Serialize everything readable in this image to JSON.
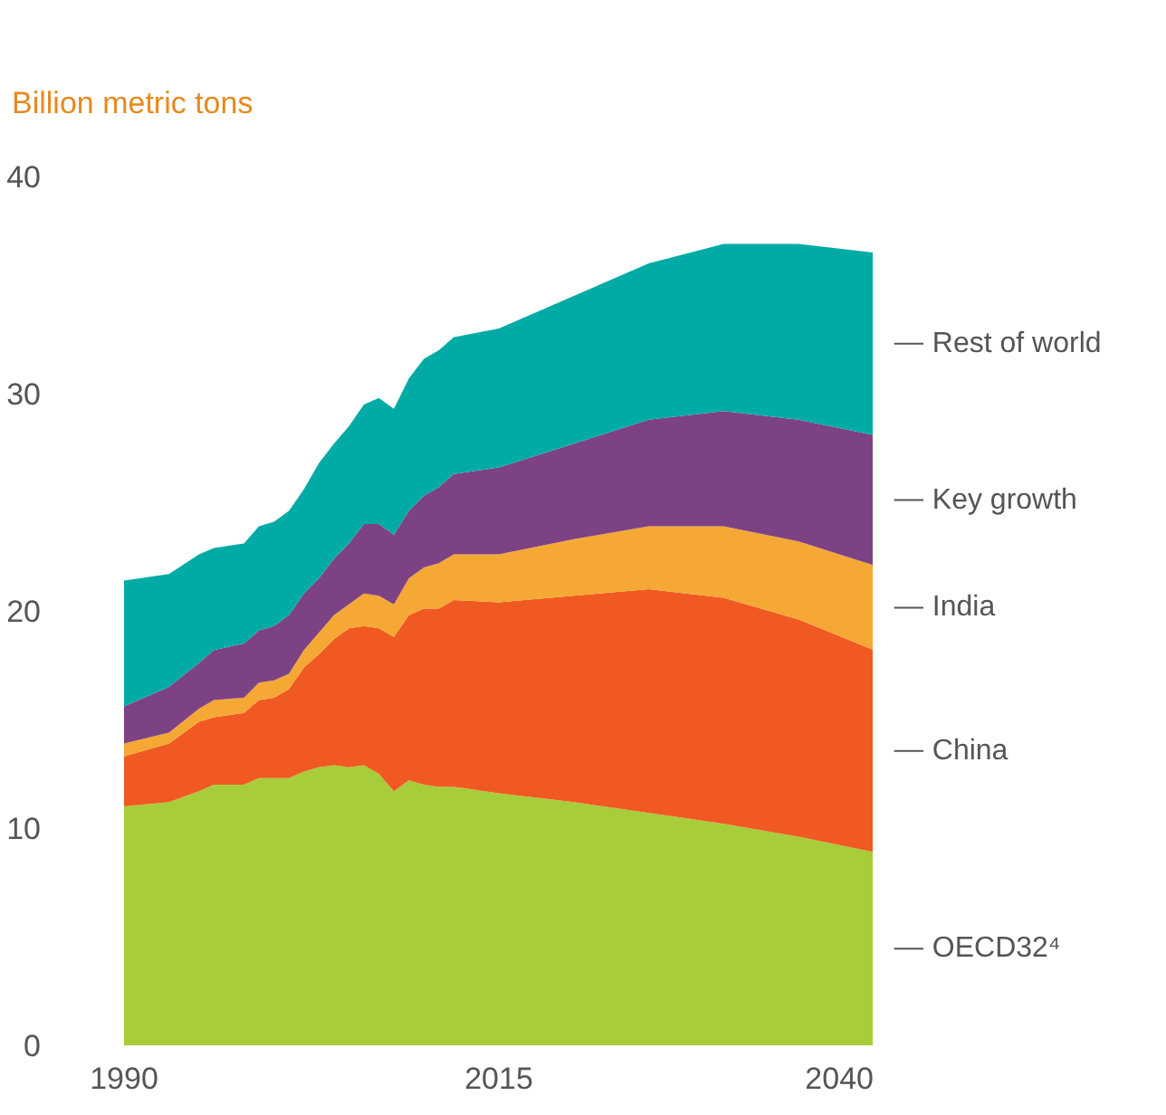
{
  "chart_data": {
    "type": "area",
    "stacked": true,
    "title": "Billion metric tons",
    "x": [
      1990,
      1993,
      1995,
      1996,
      1998,
      1999,
      2000,
      2001,
      2002,
      2003,
      2004,
      2005,
      2006,
      2007,
      2008,
      2009,
      2010,
      2011,
      2012,
      2015,
      2020,
      2025,
      2030,
      2035,
      2040
    ],
    "series": [
      {
        "name": "OECD32⁴",
        "color": "#a8cd3a",
        "values": [
          11.0,
          11.2,
          11.7,
          12.0,
          12.0,
          12.3,
          12.3,
          12.3,
          12.6,
          12.8,
          12.9,
          12.8,
          12.9,
          12.5,
          11.7,
          12.2,
          12.0,
          11.9,
          11.9,
          11.6,
          11.2,
          10.7,
          10.2,
          9.6,
          8.9
        ]
      },
      {
        "name": "China",
        "color": "#f05a22",
        "values": [
          2.3,
          2.7,
          3.2,
          3.1,
          3.3,
          3.6,
          3.7,
          4.1,
          4.8,
          5.2,
          5.8,
          6.4,
          6.4,
          6.7,
          7.1,
          7.6,
          8.1,
          8.2,
          8.6,
          8.8,
          9.5,
          10.3,
          10.4,
          10.0,
          9.3
        ]
      },
      {
        "name": "India",
        "color": "#f5a833",
        "values": [
          0.6,
          0.5,
          0.6,
          0.8,
          0.7,
          0.8,
          0.8,
          0.7,
          0.8,
          1.0,
          1.1,
          1.1,
          1.5,
          1.5,
          1.5,
          1.7,
          1.9,
          2.1,
          2.1,
          2.2,
          2.6,
          2.9,
          3.3,
          3.6,
          3.9
        ]
      },
      {
        "name": "Key growth",
        "color": "#7d4283",
        "values": [
          1.7,
          2.1,
          2.1,
          2.3,
          2.5,
          2.4,
          2.5,
          2.7,
          2.6,
          2.5,
          2.6,
          2.8,
          3.2,
          3.3,
          3.2,
          3.1,
          3.3,
          3.5,
          3.7,
          4.0,
          4.4,
          4.9,
          5.3,
          5.6,
          6.0
        ]
      },
      {
        "name": "Rest of world",
        "color": "#00aba5",
        "values": [
          5.8,
          5.2,
          5.0,
          4.7,
          4.6,
          4.8,
          4.8,
          4.8,
          4.8,
          5.3,
          5.3,
          5.4,
          5.5,
          5.8,
          5.8,
          6.1,
          6.3,
          6.3,
          6.3,
          6.4,
          6.8,
          7.2,
          7.7,
          8.1,
          8.4
        ]
      }
    ],
    "xlim": [
      1990,
      2040
    ],
    "ylim": [
      0,
      40
    ],
    "xticks": [
      1990,
      2015,
      2040
    ],
    "yticks": [
      0,
      10,
      20,
      30,
      40
    ],
    "grid": false
  }
}
